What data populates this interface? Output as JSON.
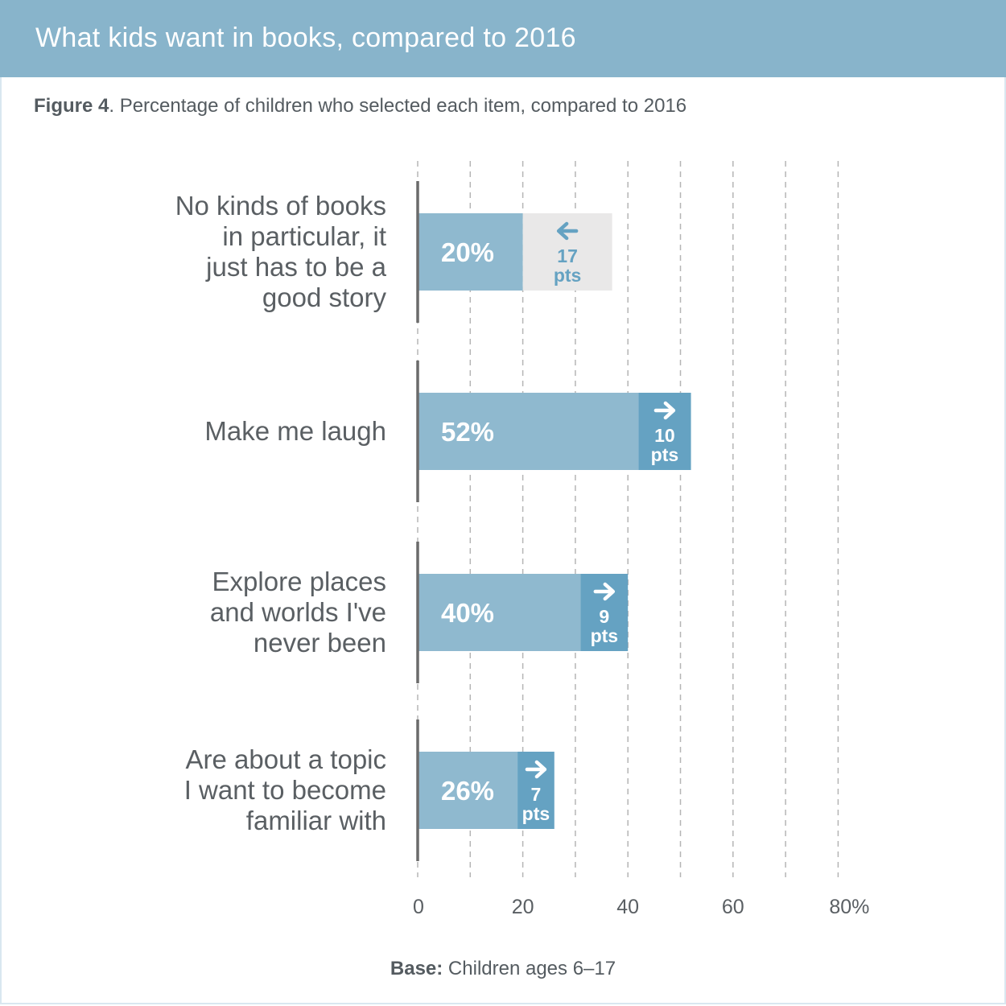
{
  "header": {
    "title": "What kids want in books, compared to 2016"
  },
  "subtitle": {
    "figure_label": "Figure 4",
    "text": ". Percentage of children who selected each item, compared to 2016"
  },
  "footer": {
    "base_label": "Base:",
    "base_text": " Children ages 6–17"
  },
  "colors": {
    "bar": "#8fb9cf",
    "change_up": "#65a2c2",
    "change_down_bg": "#e9e8e8",
    "change_down_text": "#65a2c2",
    "axis": "#6b6b6b",
    "grid": "#b5b5b5"
  },
  "chart_data": {
    "type": "bar",
    "orientation": "horizontal",
    "title": "What kids want in books, compared to 2016",
    "subtitle": "Figure 4. Percentage of children who selected each item, compared to 2016",
    "xlim": [
      0,
      80
    ],
    "ticks": [
      0,
      20,
      40,
      60,
      80
    ],
    "tick_labels": [
      "0",
      "20",
      "40",
      "60",
      "80%"
    ],
    "grid": true,
    "grid_step": 10,
    "unit": "pts",
    "categories": [
      {
        "label_lines": [
          "No kinds of books",
          "in particular, it",
          "just has to be a",
          "good story"
        ],
        "value": 20,
        "value_label": "20%",
        "change": -17,
        "change_label": "17",
        "change_direction": "down"
      },
      {
        "label_lines": [
          "Make me laugh"
        ],
        "value": 52,
        "value_label": "52%",
        "change": 10,
        "change_label": "10",
        "change_direction": "up"
      },
      {
        "label_lines": [
          "Explore places",
          "and worlds I've",
          "never been"
        ],
        "value": 40,
        "value_label": "40%",
        "change": 9,
        "change_label": "9",
        "change_direction": "up"
      },
      {
        "label_lines": [
          "Are about a topic",
          "I want to become",
          "familiar with"
        ],
        "value": 26,
        "value_label": "26%",
        "change": 7,
        "change_label": "7",
        "change_direction": "up"
      }
    ],
    "base": "Base: Children ages 6–17"
  }
}
